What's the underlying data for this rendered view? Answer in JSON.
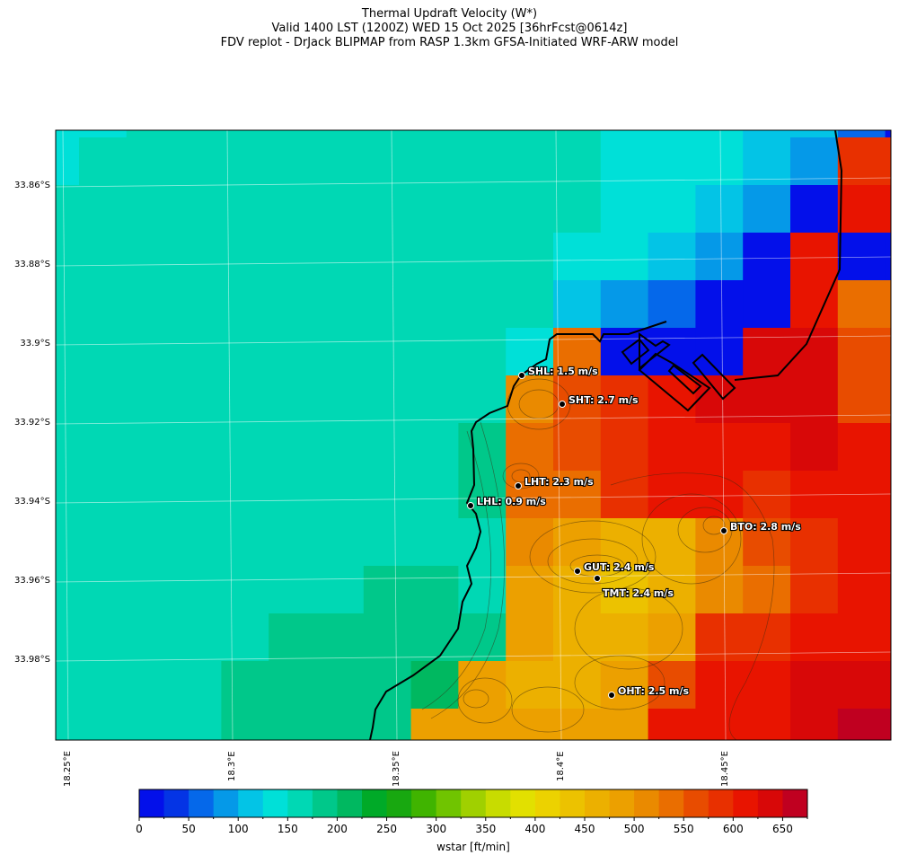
{
  "title": {
    "line1": "Thermal Updraft Velocity (W*)",
    "line2": "Valid 1400 LST (1200Z) WED 15 Oct 2025 [36hrFcst@0614z]",
    "line3": "FDV replot - DrJack BLIPMAP from RASP 1.3km GFSA-Initiated WRF-ARW model"
  },
  "chart_data": {
    "type": "heatmap",
    "title": "Thermal Updraft Velocity (W*)",
    "colorbar": {
      "label": "wstar [ft/min]",
      "range": [
        0,
        675
      ],
      "step": 25,
      "tick_labels": [
        "0",
        "50",
        "100",
        "150",
        "200",
        "250",
        "300",
        "350",
        "400",
        "450",
        "500",
        "550",
        "600",
        "650"
      ],
      "colors": [
        "#0310ea",
        "#0434e5",
        "#0568ea",
        "#0599e8",
        "#03c4e6",
        "#00e0d8",
        "#00d8b4",
        "#00c88a",
        "#00b860",
        "#00aa28",
        "#18a810",
        "#40b400",
        "#70c400",
        "#a0d000",
        "#c8dc00",
        "#e2e000",
        "#ecd200",
        "#ecc200",
        "#ecb000",
        "#eca000",
        "#ea8a00",
        "#ea6e00",
        "#e84c00",
        "#e83000",
        "#e81400",
        "#d80808",
        "#c00020"
      ]
    },
    "lat_labels": [
      "33.86°S",
      "33.88°S",
      "33.9°S",
      "33.92°S",
      "33.94°S",
      "33.96°S",
      "33.98°S"
    ],
    "lon_labels": [
      "18.25°E",
      "18.3°E",
      "18.35°E",
      "18.4°E",
      "18.45°E"
    ],
    "wstar_grid_ftmin": [
      [
        135,
        135,
        160,
        160,
        160,
        160,
        160,
        160,
        160,
        160,
        160,
        160,
        135,
        135,
        135,
        110,
        110,
        60,
        10
      ],
      [
        135,
        160,
        160,
        160,
        160,
        160,
        160,
        160,
        160,
        160,
        160,
        160,
        135,
        135,
        135,
        110,
        85,
        585,
        585
      ],
      [
        160,
        160,
        160,
        160,
        160,
        160,
        160,
        160,
        160,
        160,
        160,
        160,
        135,
        135,
        110,
        85,
        10,
        610,
        610
      ],
      [
        160,
        160,
        160,
        160,
        160,
        160,
        160,
        160,
        160,
        160,
        160,
        135,
        135,
        110,
        85,
        10,
        610,
        10,
        10
      ],
      [
        160,
        160,
        160,
        160,
        160,
        160,
        160,
        160,
        160,
        160,
        160,
        110,
        85,
        60,
        10,
        10,
        610,
        535,
        535
      ],
      [
        160,
        160,
        160,
        160,
        160,
        160,
        160,
        160,
        160,
        160,
        135,
        535,
        10,
        10,
        10,
        635,
        635,
        560,
        560
      ],
      [
        160,
        160,
        160,
        160,
        160,
        160,
        160,
        160,
        160,
        160,
        510,
        560,
        585,
        610,
        635,
        635,
        635,
        560,
        560
      ],
      [
        160,
        160,
        160,
        160,
        160,
        160,
        160,
        160,
        160,
        185,
        535,
        560,
        585,
        610,
        610,
        610,
        635,
        610,
        610
      ],
      [
        160,
        160,
        160,
        160,
        160,
        160,
        160,
        160,
        160,
        185,
        535,
        535,
        585,
        610,
        610,
        585,
        610,
        610,
        610
      ],
      [
        160,
        160,
        160,
        160,
        160,
        160,
        160,
        160,
        160,
        160,
        510,
        485,
        460,
        460,
        510,
        560,
        585,
        610,
        610
      ],
      [
        160,
        160,
        160,
        160,
        160,
        160,
        160,
        185,
        185,
        160,
        485,
        460,
        435,
        460,
        510,
        535,
        585,
        610,
        610
      ],
      [
        160,
        160,
        160,
        160,
        160,
        185,
        185,
        185,
        185,
        185,
        485,
        460,
        460,
        485,
        585,
        585,
        610,
        610,
        610
      ],
      [
        160,
        160,
        160,
        160,
        185,
        185,
        185,
        185,
        210,
        485,
        460,
        460,
        485,
        560,
        610,
        610,
        635,
        635,
        635
      ],
      [
        160,
        160,
        160,
        160,
        185,
        185,
        185,
        185,
        485,
        485,
        485,
        485,
        485,
        610,
        610,
        610,
        635,
        660,
        660
      ]
    ],
    "stations": [
      {
        "name": "SHL",
        "label": "SHL: 1.5 m/s",
        "value_ms": 1.5
      },
      {
        "name": "SHT",
        "label": "SHT: 2.7 m/s",
        "value_ms": 2.7
      },
      {
        "name": "LHT",
        "label": "LHT: 2.3 m/s",
        "value_ms": 2.3
      },
      {
        "name": "LHL",
        "label": "LHL: 0.9 m/s",
        "value_ms": 0.9
      },
      {
        "name": "BTO",
        "label": "BTO: 2.8 m/s",
        "value_ms": 2.8
      },
      {
        "name": "GUT",
        "label": "GUT: 2.4 m/s",
        "value_ms": 2.4
      },
      {
        "name": "TMT",
        "label": "TMT: 2.4 m/s",
        "value_ms": 2.4
      },
      {
        "name": "OHT",
        "label": "OHT: 2.5 m/s",
        "value_ms": 2.5
      }
    ]
  }
}
